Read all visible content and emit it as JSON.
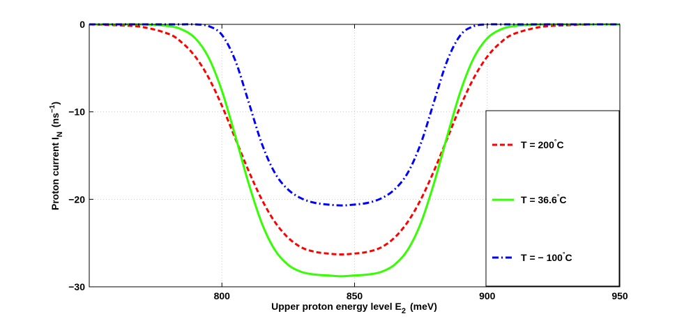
{
  "chart_data": {
    "type": "line",
    "xlabel_main": "Upper proton energy level E",
    "xlabel_sub": "2",
    "xlabel_unit": "(meV)",
    "ylabel_main": "Proton current I",
    "ylabel_sub": "N",
    "ylabel_unit_open": "(ns",
    "ylabel_unit_sup": "−1",
    "ylabel_unit_close": ")",
    "xlim": [
      750,
      950
    ],
    "ylim": [
      -30,
      0
    ],
    "x_ticks": [
      800,
      850,
      900,
      950
    ],
    "y_ticks": [
      0,
      -10,
      -20,
      -30
    ],
    "x_tick_labels": [
      "800",
      "850",
      "900",
      "950"
    ],
    "y_tick_labels": [
      "0",
      "−10",
      "−20",
      "−30"
    ],
    "grid": true,
    "legend_position": "right",
    "series": [
      {
        "name_prefix": "T = 200",
        "name_suffix": "C",
        "color": "#ff0000",
        "style": "dashed",
        "x": [
          750,
          760,
          770,
          780,
          785,
          790,
          795,
          800,
          805,
          810,
          815,
          820,
          825,
          830,
          835,
          840,
          845,
          850,
          855,
          860,
          865,
          870,
          875,
          880,
          885,
          890,
          895,
          900,
          905,
          910,
          920,
          930,
          940,
          950
        ],
        "y": [
          0,
          -0.1,
          -0.3,
          -1.1,
          -2.1,
          -3.7,
          -6.1,
          -9.3,
          -13.0,
          -16.7,
          -20.0,
          -22.6,
          -24.4,
          -25.5,
          -26.0,
          -26.2,
          -26.3,
          -26.2,
          -26.0,
          -25.5,
          -24.4,
          -22.6,
          -20.0,
          -16.7,
          -13.0,
          -9.3,
          -6.1,
          -3.7,
          -2.1,
          -1.1,
          -0.3,
          -0.1,
          0,
          0
        ]
      },
      {
        "name_prefix": "T = 36.6",
        "name_suffix": "C",
        "color": "#33ff00",
        "style": "solid",
        "x": [
          750,
          760,
          770,
          780,
          785,
          790,
          795,
          800,
          805,
          810,
          815,
          820,
          825,
          830,
          835,
          840,
          845,
          850,
          855,
          860,
          865,
          870,
          875,
          880,
          885,
          890,
          895,
          900,
          905,
          910,
          920,
          930,
          940,
          950
        ],
        "y": [
          0,
          0,
          0,
          -0.2,
          -0.6,
          -1.6,
          -3.8,
          -7.6,
          -12.7,
          -18.1,
          -22.7,
          -25.8,
          -27.5,
          -28.3,
          -28.6,
          -28.7,
          -28.8,
          -28.7,
          -28.6,
          -28.3,
          -27.5,
          -25.8,
          -22.7,
          -18.1,
          -12.7,
          -7.6,
          -3.8,
          -1.6,
          -0.6,
          -0.2,
          0,
          0,
          0,
          0
        ]
      },
      {
        "name_prefix": "T = − 100",
        "name_suffix": "C",
        "color": "#0000ff",
        "style": "dashdot",
        "x": [
          750,
          760,
          770,
          780,
          785,
          790,
          795,
          800,
          805,
          810,
          815,
          820,
          825,
          830,
          835,
          840,
          845,
          850,
          855,
          860,
          865,
          870,
          875,
          880,
          885,
          890,
          895,
          900,
          905,
          910,
          920,
          930,
          940,
          950
        ],
        "y": [
          0,
          0,
          0,
          0,
          0,
          0,
          -0.2,
          -1.2,
          -4.1,
          -8.8,
          -13.6,
          -17.0,
          -18.9,
          -19.9,
          -20.4,
          -20.6,
          -20.7,
          -20.6,
          -20.4,
          -19.9,
          -18.9,
          -17.0,
          -13.6,
          -8.8,
          -4.1,
          -1.2,
          -0.2,
          0,
          0,
          0,
          0,
          0,
          0,
          0
        ]
      }
    ]
  }
}
